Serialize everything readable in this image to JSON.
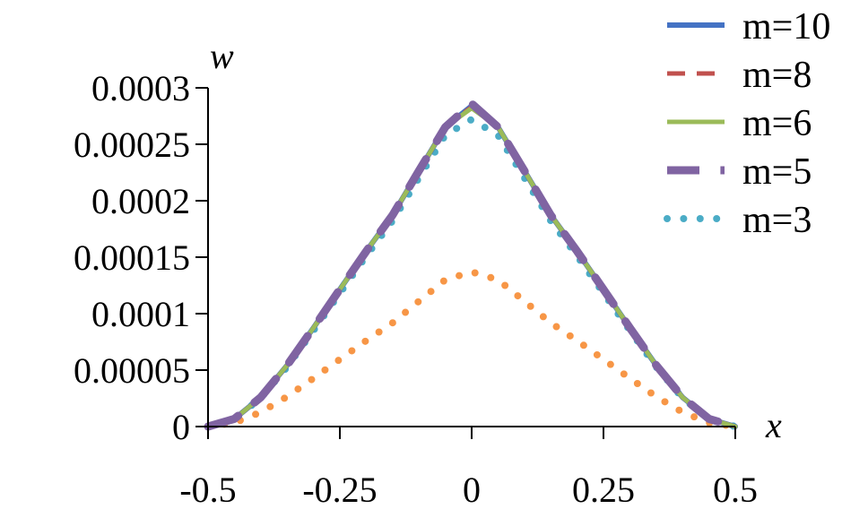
{
  "chart_data": {
    "type": "line",
    "title": "",
    "xlabel": "x",
    "ylabel": "w",
    "xlim": [
      -0.5,
      0.5
    ],
    "ylim": [
      0,
      0.0003
    ],
    "grid": false,
    "legend_position": "top-right",
    "x_ticks": [
      {
        "value": -0.5,
        "label": "-0.5"
      },
      {
        "value": -0.25,
        "label": "-0.25"
      },
      {
        "value": 0,
        "label": "0"
      },
      {
        "value": 0.25,
        "label": "0.25"
      },
      {
        "value": 0.5,
        "label": "0.5"
      }
    ],
    "y_ticks": [
      {
        "value": 0,
        "label": "0"
      },
      {
        "value": 5e-05,
        "label": "0.00005"
      },
      {
        "value": 0.0001,
        "label": "0.0001"
      },
      {
        "value": 0.00015,
        "label": "0.00015"
      },
      {
        "value": 0.0002,
        "label": "0.0002"
      },
      {
        "value": 0.00025,
        "label": "0.00025"
      },
      {
        "value": 0.0003,
        "label": "0.0003"
      }
    ],
    "x": [
      -0.5,
      -0.45,
      -0.4,
      -0.35,
      -0.3,
      -0.25,
      -0.2,
      -0.15,
      -0.1,
      -0.05,
      0,
      0.05,
      0.1,
      0.15,
      0.2,
      0.25,
      0.3,
      0.35,
      0.4,
      0.45,
      0.5
    ],
    "series": [
      {
        "name": "m=10",
        "style": "solid",
        "color": "#4472C4",
        "width": 6,
        "values": [
          0,
          6.8e-06,
          2.59e-05,
          5.43e-05,
          8.75e-05,
          0.0001215,
          0.0001552,
          0.0001873,
          0.0002265,
          0.0002652,
          0.000284,
          0.0002652,
          0.0002265,
          0.0001873,
          0.0001552,
          0.0001215,
          8.75e-05,
          5.43e-05,
          2.59e-05,
          6.8e-06,
          0
        ]
      },
      {
        "name": "m=8",
        "style": "dashed",
        "color": "#C0504D",
        "width": 5,
        "values": [
          0,
          6.8e-06,
          2.59e-05,
          5.43e-05,
          8.75e-05,
          0.0001215,
          0.0001552,
          0.0001873,
          0.0002265,
          0.0002652,
          0.000283,
          0.0002652,
          0.0002265,
          0.0001873,
          0.0001552,
          0.0001215,
          8.75e-05,
          5.43e-05,
          2.59e-05,
          6.8e-06,
          0
        ]
      },
      {
        "name": "m=6",
        "style": "solid",
        "color": "#9BBB59",
        "width": 5,
        "values": [
          0,
          6.8e-06,
          2.59e-05,
          5.43e-05,
          8.75e-05,
          0.0001215,
          0.0001552,
          0.0001873,
          0.0002265,
          0.0002652,
          0.000282,
          0.0002652,
          0.0002265,
          0.0001873,
          0.0001552,
          0.0001215,
          8.75e-05,
          5.43e-05,
          2.59e-05,
          6.8e-06,
          0
        ]
      },
      {
        "name": "m=5",
        "style": "dashed",
        "color": "#8064A2",
        "width": 9,
        "values": [
          0,
          6.8e-06,
          2.59e-05,
          5.43e-05,
          8.75e-05,
          0.0001215,
          0.0001552,
          0.0001873,
          0.0002265,
          0.0002652,
          0.000286,
          0.0002652,
          0.0002265,
          0.0001873,
          0.0001552,
          0.0001215,
          8.75e-05,
          5.43e-05,
          2.59e-05,
          6.8e-06,
          0
        ]
      },
      {
        "name": "m=3",
        "style": "dotted",
        "color": "#4BACC6",
        "width": 8,
        "values": [
          0,
          6.6e-06,
          2.52e-05,
          5.28e-05,
          8.51e-05,
          0.0001181,
          0.000151,
          0.0001822,
          0.0002203,
          0.000258,
          0.000272,
          0.000258,
          0.0002203,
          0.0001822,
          0.000151,
          0.0001181,
          8.51e-05,
          5.28e-05,
          2.52e-05,
          6.6e-06,
          0
        ]
      },
      {
        "style": "dotted",
        "color": "#F79646",
        "width": 8,
        "values": [
          0,
          3.3e-06,
          1.27e-05,
          2.65e-05,
          4.28e-05,
          5.95e-05,
          7.61e-05,
          9.18e-05,
          0.000111,
          0.00013,
          0.000137,
          0.00013,
          0.000111,
          9.18e-05,
          7.61e-05,
          5.95e-05,
          4.28e-05,
          2.65e-05,
          1.27e-05,
          3.3e-06,
          0
        ]
      }
    ]
  }
}
